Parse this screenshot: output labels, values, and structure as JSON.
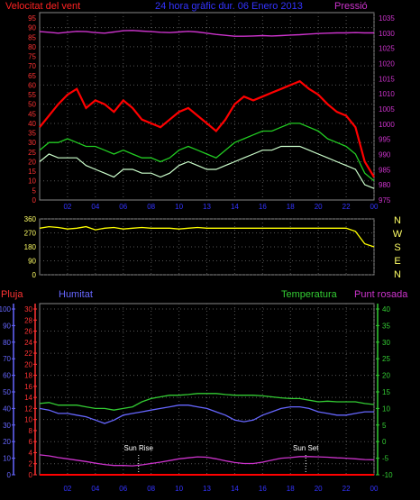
{
  "header": {
    "left_title": "Velocitat del vent",
    "center_title": "24 hora gràfic dur. 06 Enero 2013",
    "right_title": "Pressió"
  },
  "colors": {
    "wind_gust": "#ff0000",
    "wind_avg": "#22cc22",
    "wind_speed": "#ccffcc",
    "pressure": "#cc33cc",
    "direction": "#ffff00",
    "rain": "#ff0000",
    "humidity": "#6666ff",
    "temperature": "#33cc33",
    "dewpoint": "#cc33cc",
    "grid": "#555555"
  },
  "direction_axis_labels": [
    "N",
    "W",
    "S",
    "E",
    "N"
  ],
  "chart_data": [
    {
      "type": "line",
      "name": "wind-pressure",
      "x_ticks": [
        "02",
        "04",
        "06",
        "08",
        "10",
        "13",
        "14",
        "16",
        "18",
        "20",
        "22",
        "00"
      ],
      "left_axis": {
        "ticks": [
          "0",
          "5",
          "10",
          "15",
          "20",
          "25",
          "30",
          "35",
          "40",
          "45",
          "50",
          "55",
          "60",
          "65",
          "70",
          "75",
          "80",
          "85",
          "90",
          "95"
        ],
        "ylim": [
          0,
          95
        ]
      },
      "right_axis": {
        "ticks": [
          "975",
          "980",
          "985",
          "990",
          "995",
          "1000",
          "1005",
          "1010",
          "1015",
          "1020",
          "1025",
          "1030",
          "1035"
        ],
        "ylim": [
          975,
          1035
        ]
      },
      "series": [
        {
          "name": "Velocitat del vent",
          "values": [
            38,
            44,
            50,
            55,
            58,
            48,
            52,
            50,
            46,
            52,
            48,
            42,
            40,
            38,
            42,
            46,
            48,
            44,
            40,
            36,
            42,
            50,
            54,
            52,
            54,
            56,
            58,
            60,
            62,
            58,
            55,
            50,
            46,
            44,
            38,
            20,
            12
          ]
        },
        {
          "name": "Pressió",
          "values": [
            1030.5,
            1030.3,
            1030.0,
            1030.3,
            1030.6,
            1030.5,
            1030.2,
            1030.0,
            1030.4,
            1030.8,
            1030.9,
            1030.7,
            1030.5,
            1030.3,
            1030.2,
            1030.4,
            1030.6,
            1030.4,
            1030.0,
            1029.6,
            1029.3,
            1029.0,
            1029.0,
            1029.1,
            1029.2,
            1029.1,
            1029.2,
            1029.4,
            1029.5,
            1029.7,
            1029.9,
            1030.0,
            1030.1,
            1030.1,
            1030.2,
            1030.1,
            1030.1
          ]
        },
        {
          "values": [
            26,
            30,
            30,
            32,
            30,
            28,
            28,
            26,
            24,
            26,
            24,
            22,
            22,
            20,
            22,
            26,
            28,
            26,
            24,
            22,
            26,
            30,
            32,
            34,
            36,
            36,
            38,
            40,
            40,
            38,
            36,
            32,
            30,
            28,
            24,
            14,
            10
          ]
        },
        {
          "values": [
            20,
            24,
            22,
            22,
            22,
            18,
            16,
            14,
            12,
            16,
            16,
            14,
            14,
            12,
            14,
            18,
            20,
            18,
            16,
            16,
            18,
            20,
            22,
            24,
            26,
            26,
            28,
            28,
            28,
            26,
            24,
            22,
            20,
            18,
            16,
            8,
            6
          ]
        }
      ]
    },
    {
      "type": "line",
      "name": "wind-direction",
      "x_ticks": [
        "02",
        "04",
        "06",
        "08",
        "10",
        "13",
        "14",
        "16",
        "18",
        "20",
        "22",
        "00"
      ],
      "left_axis": {
        "ticks": [
          "360",
          "270",
          "180",
          "90",
          "0"
        ],
        "ylim": [
          0,
          360
        ]
      },
      "series": [
        {
          "values": [
            300,
            310,
            305,
            295,
            300,
            310,
            290,
            300,
            305,
            295,
            300,
            305,
            300,
            300,
            300,
            295,
            300,
            305,
            300,
            300,
            300,
            300,
            300,
            300,
            300,
            300,
            300,
            300,
            300,
            300,
            300,
            300,
            300,
            300,
            280,
            200,
            180
          ]
        }
      ]
    },
    {
      "type": "line",
      "name": "rain-humidity-temperature",
      "x_ticks": [
        "02",
        "04",
        "06",
        "08",
        "10",
        "13",
        "14",
        "16",
        "18",
        "20",
        "22",
        "00"
      ],
      "rain_axis": {
        "label": "Pluja",
        "ticks": [
          "0",
          "10",
          "20",
          "30",
          "40",
          "50",
          "60",
          "70",
          "80",
          "90",
          "100"
        ],
        "ylim": [
          0,
          100
        ]
      },
      "humidity_axis": {
        "label": "Humitat",
        "ticks": [
          "0",
          "2",
          "4",
          "6",
          "8",
          "10",
          "12",
          "14",
          "16",
          "18",
          "20",
          "22",
          "24",
          "26",
          "28",
          "30"
        ],
        "ylim": [
          0,
          30
        ]
      },
      "temperature_axis": {
        "label": "Temperatura",
        "ticks": [
          "-10",
          "-5",
          "0",
          "5",
          "10",
          "15",
          "20",
          "25",
          "30",
          "35",
          "40"
        ],
        "ylim": [
          -10,
          40
        ]
      },
      "dewpoint_label": "Punt rosada",
      "annotations": [
        {
          "text": "Sun Rise",
          "x": 7.1
        },
        {
          "text": "Sun Set",
          "x": 19.1
        }
      ],
      "series": [
        {
          "name": "Temperatura",
          "values": [
            11.5,
            11.8,
            11.0,
            11.0,
            11.0,
            10.5,
            10.0,
            10.0,
            9.5,
            10.0,
            10.5,
            12.0,
            13.0,
            13.5,
            14.0,
            14.0,
            14.2,
            14.5,
            14.5,
            14.5,
            14.2,
            14.0,
            14.0,
            14.0,
            13.8,
            13.5,
            13.2,
            13.0,
            13.0,
            12.5,
            12.0,
            12.2,
            12.0,
            12.0,
            12.0,
            11.5,
            11.2
          ]
        },
        {
          "name": "Humitat",
          "values": [
            40,
            39,
            37,
            37,
            36,
            35,
            33,
            31,
            33,
            36,
            37,
            38,
            39,
            40,
            41,
            42,
            42,
            41,
            40,
            38,
            36,
            33,
            32,
            33,
            36,
            38,
            40,
            41,
            41,
            40,
            38,
            37,
            36,
            36,
            37,
            38,
            38
          ]
        },
        {
          "name": "Punt rosada",
          "values": [
            -4,
            -4.3,
            -4.8,
            -5.2,
            -5.6,
            -6.0,
            -6.5,
            -6.9,
            -7.2,
            -7.2,
            -7.3,
            -7.0,
            -6.6,
            -6.2,
            -5.7,
            -5.2,
            -4.9,
            -4.6,
            -4.7,
            -5.2,
            -5.8,
            -6.3,
            -6.6,
            -6.6,
            -6.2,
            -5.6,
            -5.0,
            -4.8,
            -4.5,
            -4.5,
            -4.6,
            -4.7,
            -4.9,
            -5.0,
            -5.2,
            -5.4,
            -5.5
          ]
        },
        {
          "name": "Pluja",
          "values": [
            0,
            0,
            0,
            0,
            0,
            0,
            0,
            0,
            0,
            0,
            0,
            0,
            0,
            0,
            0,
            0,
            0,
            0,
            0,
            0,
            0,
            0,
            0,
            0,
            0,
            0,
            0,
            0,
            0,
            0,
            0,
            0,
            0,
            0,
            0,
            0,
            0
          ]
        }
      ]
    }
  ]
}
